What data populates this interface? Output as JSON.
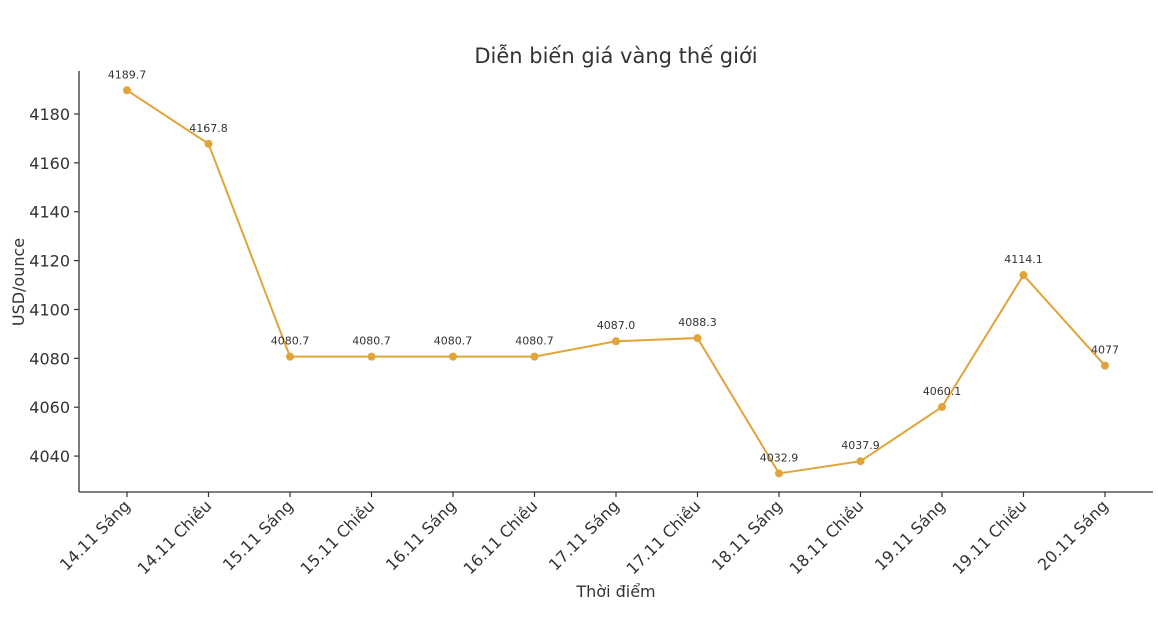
{
  "chart_data": {
    "type": "line",
    "title": "Diễn biến giá vàng thế giới",
    "xlabel": "Thời điểm",
    "ylabel": "USD/ounce",
    "categories": [
      "14.11 Sáng",
      "14.11 Chiều",
      "15.11 Sáng",
      "15.11 Chiều",
      "16.11 Sáng",
      "16.11 Chiều",
      "17.11 Sáng",
      "17.11 Chiều",
      "18.11 Sáng",
      "18.11 Chiều",
      "19.11 Sáng",
      "19.11 Chiều",
      "20.11 Sáng"
    ],
    "values": [
      4189.7,
      4167.8,
      4080.7,
      4080.7,
      4080.7,
      4080.7,
      4087.0,
      4088.3,
      4032.9,
      4037.9,
      4060.1,
      4114.1,
      4077
    ],
    "data_labels": [
      "4189.7",
      "4167.8",
      "4080.7",
      "4080.7",
      "4080.7",
      "4080.7",
      "4087.0",
      "4088.3",
      "4032.9",
      "4037.9",
      "4060.1",
      "4114.1",
      "4077"
    ],
    "yticks": [
      4040,
      4060,
      4080,
      4100,
      4120,
      4140,
      4160,
      4180
    ],
    "ylim": [
      4025.3,
      4197.6
    ],
    "grid": false,
    "color": "#E0A43A"
  }
}
